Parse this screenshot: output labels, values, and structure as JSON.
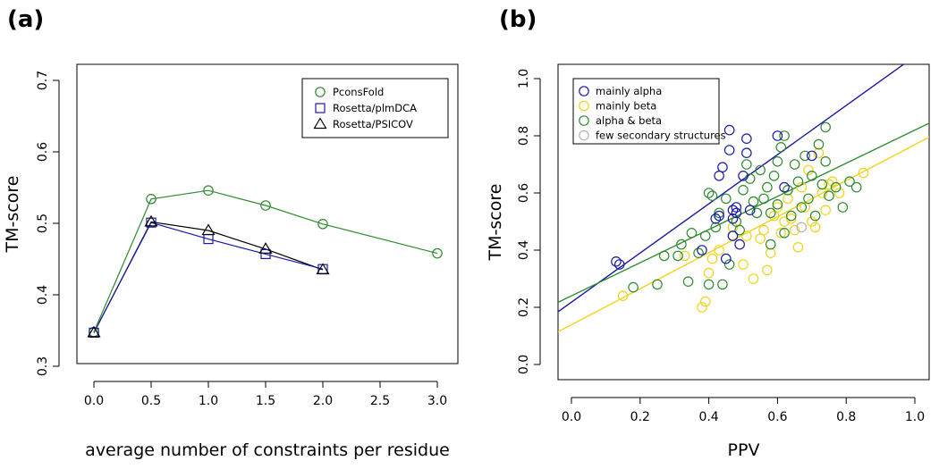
{
  "panels": [
    {
      "label": "(a)"
    },
    {
      "label": "(b)"
    }
  ],
  "chart_data": [
    {
      "type": "line",
      "xlabel": "average number of constraints per residue",
      "ylabel": "TM-score",
      "xlim": [
        0,
        3
      ],
      "ylim": [
        0.3,
        0.7
      ],
      "xticks": [
        "0.0",
        "0.5",
        "1.0",
        "1.5",
        "2.0",
        "2.5",
        "3.0"
      ],
      "yticks": [
        "0.3",
        "0.4",
        "0.5",
        "0.6",
        "0.7"
      ],
      "grid": false,
      "legend_position": "top-right",
      "series": [
        {
          "name": "PconsFold",
          "marker": "circle",
          "color": "#2e8b2e",
          "x": [
            0,
            0.5,
            1.0,
            1.5,
            2.0,
            3.0
          ],
          "y": [
            0.348,
            0.534,
            0.546,
            0.525,
            0.499,
            0.458
          ]
        },
        {
          "name": "Rosetta/plmDCA",
          "marker": "square",
          "color": "#1a1aa6",
          "x": [
            0,
            0.5,
            1.0,
            1.5,
            2.0
          ],
          "y": [
            0.347,
            0.501,
            0.478,
            0.457,
            0.436
          ]
        },
        {
          "name": "Rosetta/PSICOV",
          "marker": "triangle",
          "color": "#000000",
          "x": [
            0,
            0.5,
            1.0,
            1.5,
            2.0
          ],
          "y": [
            0.347,
            0.502,
            0.49,
            0.464,
            0.435
          ]
        }
      ]
    },
    {
      "type": "scatter",
      "xlabel": "PPV",
      "ylabel": "TM-score",
      "xlim": [
        0,
        1
      ],
      "ylim": [
        0,
        1
      ],
      "xticks": [
        "0.0",
        "0.2",
        "0.4",
        "0.6",
        "0.8",
        "1.0"
      ],
      "yticks": [
        "0.0",
        "0.2",
        "0.4",
        "0.6",
        "0.8",
        "1.0"
      ],
      "grid": false,
      "legend_position": "top-left",
      "series": [
        {
          "name": "mainly alpha",
          "color": "#1a1aa6",
          "fit": {
            "intercept": 0.218,
            "slope": 0.86
          },
          "points": [
            [
              0.13,
              0.36
            ],
            [
              0.14,
              0.35
            ],
            [
              0.38,
              0.4
            ],
            [
              0.42,
              0.51
            ],
            [
              0.43,
              0.52
            ],
            [
              0.43,
              0.66
            ],
            [
              0.44,
              0.69
            ],
            [
              0.45,
              0.37
            ],
            [
              0.46,
              0.82
            ],
            [
              0.46,
              0.75
            ],
            [
              0.47,
              0.45
            ],
            [
              0.47,
              0.51
            ],
            [
              0.47,
              0.54
            ],
            [
              0.48,
              0.53
            ],
            [
              0.48,
              0.55
            ],
            [
              0.49,
              0.42
            ],
            [
              0.5,
              0.66
            ],
            [
              0.51,
              0.79
            ],
            [
              0.51,
              0.74
            ],
            [
              0.52,
              0.54
            ],
            [
              0.6,
              0.8
            ],
            [
              0.62,
              0.62
            ],
            [
              0.7,
              0.73
            ]
          ]
        },
        {
          "name": "mainly beta",
          "color": "#f2d21b",
          "fit": {
            "intercept": 0.139,
            "slope": 0.63
          },
          "points": [
            [
              0.15,
              0.24
            ],
            [
              0.33,
              0.38
            ],
            [
              0.38,
              0.2
            ],
            [
              0.39,
              0.22
            ],
            [
              0.4,
              0.32
            ],
            [
              0.41,
              0.37
            ],
            [
              0.43,
              0.4
            ],
            [
              0.47,
              0.48
            ],
            [
              0.5,
              0.35
            ],
            [
              0.51,
              0.45
            ],
            [
              0.53,
              0.3
            ],
            [
              0.55,
              0.44
            ],
            [
              0.56,
              0.47
            ],
            [
              0.57,
              0.33
            ],
            [
              0.58,
              0.39
            ],
            [
              0.59,
              0.52
            ],
            [
              0.6,
              0.55
            ],
            [
              0.61,
              0.46
            ],
            [
              0.62,
              0.5
            ],
            [
              0.63,
              0.58
            ],
            [
              0.64,
              0.51
            ],
            [
              0.65,
              0.47
            ],
            [
              0.66,
              0.41
            ],
            [
              0.67,
              0.62
            ],
            [
              0.68,
              0.55
            ],
            [
              0.69,
              0.68
            ],
            [
              0.7,
              0.5
            ],
            [
              0.71,
              0.48
            ],
            [
              0.72,
              0.74
            ],
            [
              0.73,
              0.6
            ],
            [
              0.74,
              0.54
            ],
            [
              0.75,
              0.63
            ],
            [
              0.76,
              0.64
            ],
            [
              0.78,
              0.6
            ],
            [
              0.85,
              0.67
            ]
          ]
        },
        {
          "name": "alpha & beta",
          "color": "#2e8b2e",
          "fit": {
            "intercept": 0.24,
            "slope": 0.58
          },
          "points": [
            [
              0.18,
              0.27
            ],
            [
              0.25,
              0.28
            ],
            [
              0.27,
              0.38
            ],
            [
              0.31,
              0.38
            ],
            [
              0.32,
              0.42
            ],
            [
              0.34,
              0.29
            ],
            [
              0.35,
              0.46
            ],
            [
              0.37,
              0.39
            ],
            [
              0.39,
              0.45
            ],
            [
              0.4,
              0.6
            ],
            [
              0.4,
              0.28
            ],
            [
              0.41,
              0.59
            ],
            [
              0.42,
              0.48
            ],
            [
              0.43,
              0.53
            ],
            [
              0.44,
              0.28
            ],
            [
              0.45,
              0.58
            ],
            [
              0.46,
              0.35
            ],
            [
              0.47,
              0.45
            ],
            [
              0.48,
              0.5
            ],
            [
              0.49,
              0.47
            ],
            [
              0.5,
              0.61
            ],
            [
              0.51,
              0.7
            ],
            [
              0.52,
              0.65
            ],
            [
              0.53,
              0.57
            ],
            [
              0.54,
              0.53
            ],
            [
              0.55,
              0.68
            ],
            [
              0.56,
              0.58
            ],
            [
              0.57,
              0.62
            ],
            [
              0.58,
              0.53
            ],
            [
              0.59,
              0.66
            ],
            [
              0.6,
              0.71
            ],
            [
              0.6,
              0.56
            ],
            [
              0.61,
              0.76
            ],
            [
              0.62,
              0.8
            ],
            [
              0.62,
              0.46
            ],
            [
              0.63,
              0.61
            ],
            [
              0.64,
              0.52
            ],
            [
              0.65,
              0.7
            ],
            [
              0.66,
              0.64
            ],
            [
              0.67,
              0.55
            ],
            [
              0.68,
              0.73
            ],
            [
              0.69,
              0.58
            ],
            [
              0.7,
              0.66
            ],
            [
              0.71,
              0.52
            ],
            [
              0.72,
              0.77
            ],
            [
              0.73,
              0.63
            ],
            [
              0.74,
              0.71
            ],
            [
              0.75,
              0.59
            ],
            [
              0.77,
              0.62
            ],
            [
              0.79,
              0.55
            ],
            [
              0.81,
              0.64
            ],
            [
              0.83,
              0.62
            ],
            [
              0.74,
              0.83
            ],
            [
              0.58,
              0.42
            ]
          ]
        },
        {
          "name": "few secondary structures",
          "color": "#b3b3b3",
          "points": [
            [
              0.67,
              0.48
            ]
          ]
        }
      ]
    }
  ]
}
